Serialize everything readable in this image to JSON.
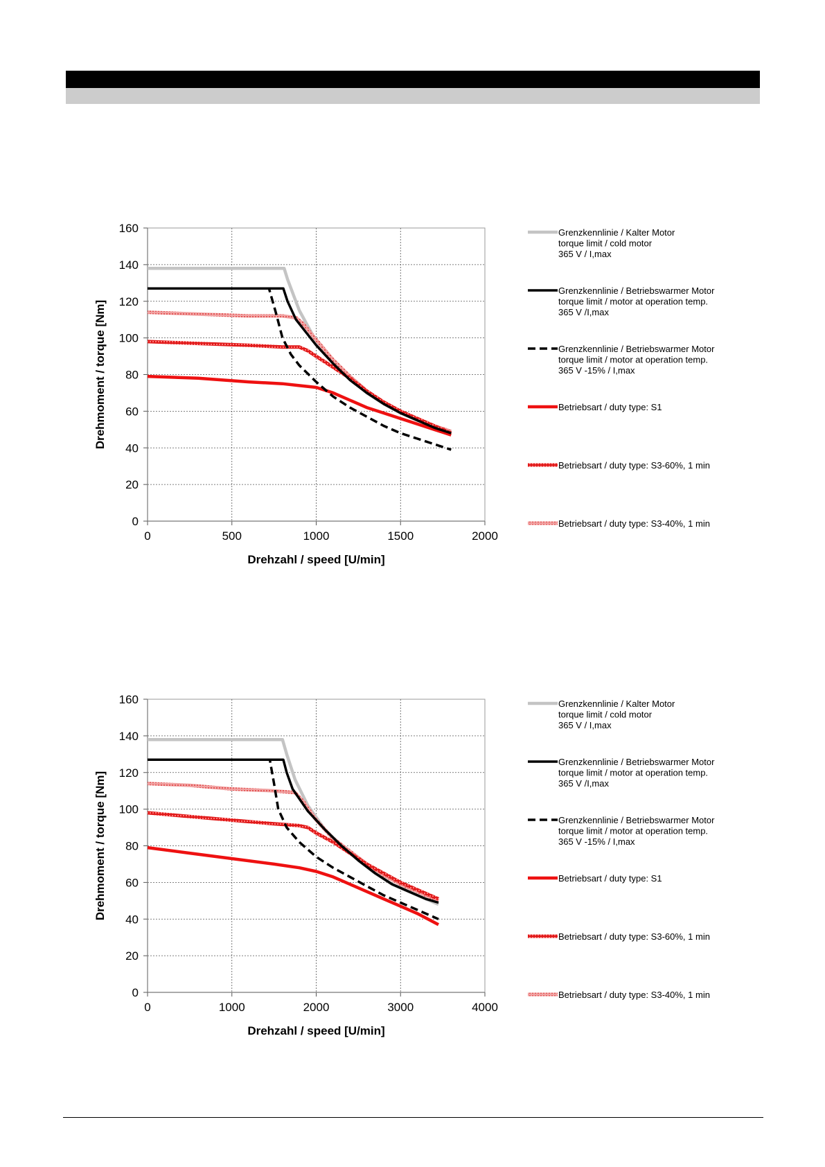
{
  "chart_data": [
    {
      "type": "line",
      "xlabel": "Drehzahl / speed [U/min]",
      "ylabel": "Drehmoment / torque [Nm]",
      "xlim": [
        0,
        2000
      ],
      "ylim": [
        0,
        160
      ],
      "xticks": [
        0,
        500,
        1000,
        1500,
        2000
      ],
      "yticks": [
        0,
        20,
        40,
        60,
        80,
        100,
        120,
        140,
        160
      ],
      "grid": true,
      "legend_position": "right",
      "series": [
        {
          "name": "Grenzkennlinie / Kalter Motor",
          "style": "gray",
          "legend_lines": [
            "Grenzkennlinie / Kalter Motor",
            "torque limit / cold  motor",
            "365 V / I,max"
          ],
          "x": [
            0,
            810,
            830,
            900,
            1000,
            1100,
            1200,
            1300,
            1400,
            1500,
            1600,
            1700,
            1800
          ],
          "y": [
            138,
            138,
            132,
            115,
            98,
            87,
            78,
            70,
            64,
            59,
            55,
            52,
            49
          ]
        },
        {
          "name": "Grenzkennlinie / Betriebswarmer Motor",
          "style": "black",
          "legend_lines": [
            "Grenzkennlinie / Betriebswarmer Motor",
            "torque limit / motor at operation temp.",
            "365 V /I,max"
          ],
          "x": [
            0,
            805,
            830,
            880,
            1000,
            1100,
            1200,
            1300,
            1400,
            1500,
            1600,
            1700,
            1800
          ],
          "y": [
            127,
            127,
            120,
            110,
            96,
            86,
            77,
            70,
            64,
            59,
            55,
            51,
            48
          ]
        },
        {
          "name": "Grenzkennlinie / Betriebswarmer Motor -15%",
          "style": "dashed",
          "legend_lines": [
            "Grenzkennlinie / Betriebswarmer Motor",
            "torque limit / motor at operation temp.",
            "365 V  -15% / I,max"
          ],
          "x": [
            0,
            720,
            760,
            800,
            850,
            900,
            1000,
            1100,
            1200,
            1300,
            1400,
            1500,
            1600,
            1700,
            1800
          ],
          "y": [
            127,
            127,
            114,
            100,
            91,
            85,
            76,
            68,
            62,
            57,
            52,
            48,
            45,
            42,
            39
          ]
        },
        {
          "name": "Betriebsart / duty type: S1",
          "style": "red",
          "legend_lines": [
            "Betriebsart / duty type: S1"
          ],
          "x": [
            0,
            300,
            600,
            800,
            900,
            1000,
            1100,
            1200,
            1300,
            1400,
            1500,
            1600,
            1700,
            1800
          ],
          "y": [
            79,
            78,
            76,
            75,
            74,
            73,
            70,
            66,
            62,
            59,
            56,
            53,
            50,
            47
          ]
        },
        {
          "name": "Betriebsart / duty type: S3-60%, 1 min",
          "style": "red-hatch",
          "legend_lines": [
            "Betriebsart / duty type: S3-60%, 1 min"
          ],
          "x": [
            0,
            300,
            600,
            800,
            900,
            950,
            1000,
            1100,
            1200,
            1300,
            1400,
            1500,
            1600,
            1700,
            1800
          ],
          "y": [
            98,
            97,
            96,
            95,
            95,
            93,
            90,
            84,
            78,
            71,
            65,
            60,
            56,
            52,
            48
          ]
        },
        {
          "name": "Betriebsart / duty type: S3-40%, 1 min",
          "style": "pink-hatch",
          "legend_lines": [
            "Betriebsart / duty type: S3-40%, 1 min"
          ],
          "x": [
            0,
            300,
            600,
            800,
            880,
            920,
            1000,
            1100,
            1200,
            1300,
            1400,
            1500,
            1600,
            1700,
            1800
          ],
          "y": [
            114,
            113,
            112,
            112,
            111,
            108,
            99,
            88,
            79,
            71,
            65,
            60,
            56,
            52,
            49
          ]
        }
      ]
    },
    {
      "type": "line",
      "xlabel": "Drehzahl / speed [U/min]",
      "ylabel": "Drehmoment / torque [Nm]",
      "xlim": [
        0,
        4000
      ],
      "ylim": [
        0,
        160
      ],
      "xticks": [
        0,
        1000,
        2000,
        3000,
        4000
      ],
      "yticks": [
        0,
        20,
        40,
        60,
        80,
        100,
        120,
        140,
        160
      ],
      "grid": true,
      "legend_position": "right",
      "series": [
        {
          "name": "Grenzkennlinie / Kalter Motor",
          "style": "gray",
          "legend_lines": [
            "Grenzkennlinie / Kalter Motor",
            "torque limit / cold  motor",
            "365 V / I,max"
          ],
          "x": [
            0,
            1600,
            1650,
            1750,
            1900,
            2100,
            2300,
            2500,
            2700,
            2900,
            3100,
            3300,
            3450
          ],
          "y": [
            138,
            138,
            130,
            116,
            102,
            89,
            80,
            72,
            65,
            59,
            55,
            51,
            48
          ]
        },
        {
          "name": "Grenzkennlinie / Betriebswarmer Motor",
          "style": "black",
          "legend_lines": [
            "Grenzkennlinie / Betriebswarmer Motor",
            "torque limit / motor at operation temp.",
            "365 V /I,max"
          ],
          "x": [
            0,
            1610,
            1650,
            1720,
            1900,
            2100,
            2300,
            2500,
            2700,
            2900,
            3100,
            3300,
            3450
          ],
          "y": [
            127,
            127,
            120,
            111,
            99,
            89,
            80,
            72,
            65,
            59,
            55,
            51,
            49
          ]
        },
        {
          "name": "Grenzkennlinie / Betriebswarmer Motor -15%",
          "style": "dashed",
          "legend_lines": [
            "Grenzkennlinie / Betriebswarmer Motor",
            "torque limit / motor at operation temp.",
            "365 V  -15% / I,max"
          ],
          "x": [
            0,
            1450,
            1500,
            1550,
            1650,
            1800,
            2000,
            2200,
            2400,
            2600,
            2800,
            3000,
            3200,
            3450
          ],
          "y": [
            127,
            127,
            114,
            100,
            90,
            82,
            74,
            68,
            63,
            58,
            53,
            49,
            45,
            40
          ]
        },
        {
          "name": "Betriebsart / duty type: S1",
          "style": "red",
          "legend_lines": [
            "Betriebsart / duty type: S1"
          ],
          "x": [
            0,
            500,
            1000,
            1500,
            1800,
            2000,
            2200,
            2400,
            2600,
            2800,
            3000,
            3200,
            3450
          ],
          "y": [
            79,
            76,
            73,
            70,
            68,
            66,
            63,
            59,
            55,
            51,
            47,
            43,
            37
          ]
        },
        {
          "name": "Betriebsart / duty type: S3-60%, 1 min",
          "style": "red-hatch",
          "legend_lines": [
            "Betriebsart / duty type: S3-60%, 1 min"
          ],
          "x": [
            0,
            500,
            1000,
            1500,
            1800,
            1900,
            2000,
            2200,
            2400,
            2600,
            2800,
            3000,
            3200,
            3450
          ],
          "y": [
            98,
            96,
            94,
            92,
            91,
            90,
            87,
            82,
            76,
            70,
            65,
            60,
            56,
            51
          ]
        },
        {
          "name": "Betriebsart / duty type: S3-40%, 1 min",
          "style": "pink-hatch",
          "legend_lines": [
            "Betriebsart / duty type: S3-40%, 1 min"
          ],
          "x": [
            0,
            500,
            1000,
            1500,
            1750,
            1850,
            2000,
            2200,
            2400,
            2600,
            2800,
            3000,
            3200,
            3450
          ],
          "y": [
            114,
            113,
            111,
            110,
            109,
            104,
            94,
            84,
            77,
            70,
            64,
            59,
            55,
            50
          ]
        }
      ]
    }
  ]
}
